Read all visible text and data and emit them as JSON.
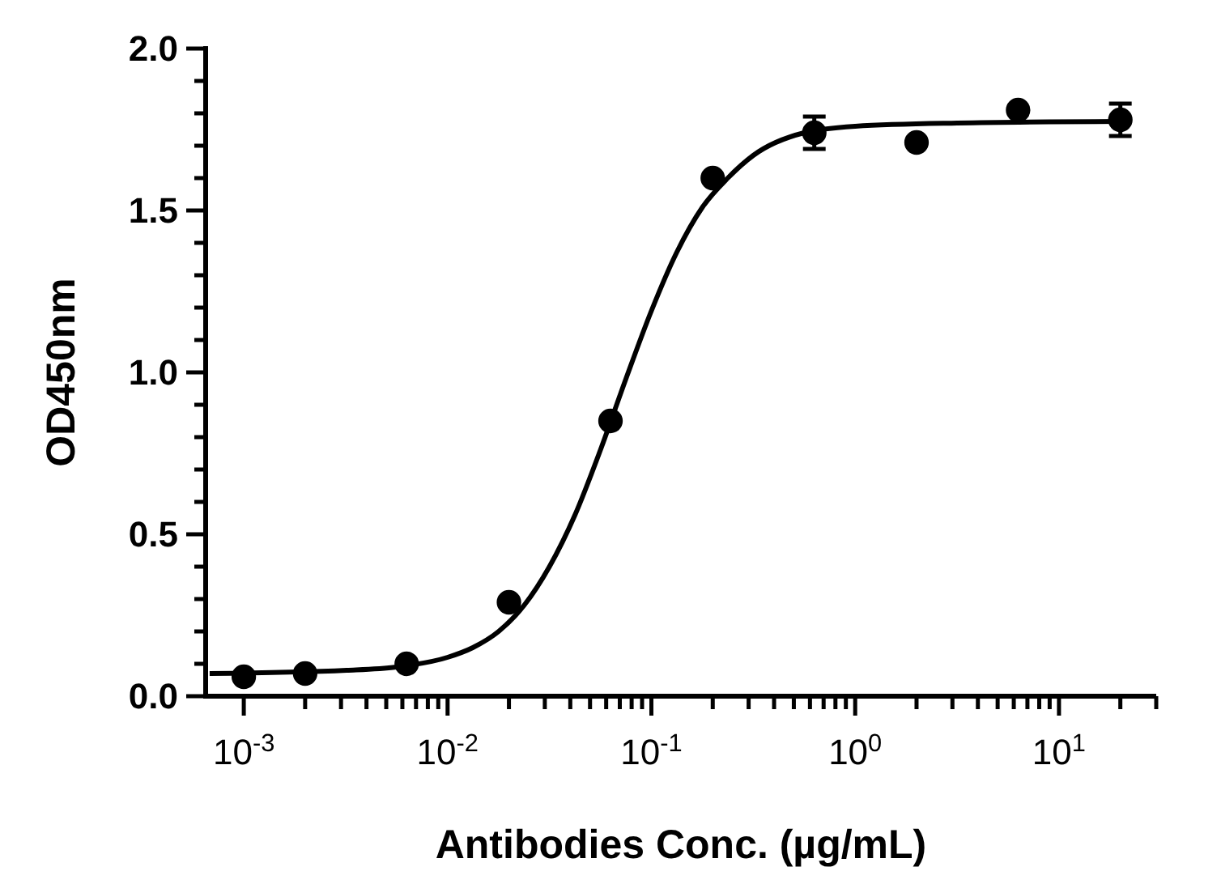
{
  "chart_data": {
    "type": "scatter",
    "xlabel": "Antibodies Conc. (µg/mL)",
    "ylabel": "OD450nm",
    "log": "x",
    "grid": false,
    "marker": "circle",
    "xlim": [
      0.00065,
      30
    ],
    "ylim": [
      0,
      2
    ],
    "xticks": [
      {
        "value": 0.001,
        "label": "10$^{-3}$"
      },
      {
        "value": 0.002,
        "label": null
      },
      {
        "value": 0.003,
        "label": null
      },
      {
        "value": 0.004,
        "label": null
      },
      {
        "value": 0.005,
        "label": null
      },
      {
        "value": 0.006,
        "label": null
      },
      {
        "value": 0.007,
        "label": null
      },
      {
        "value": 0.008,
        "label": null
      },
      {
        "value": 0.009,
        "label": null
      },
      {
        "value": 0.01,
        "label": "10$^{-2}$"
      },
      {
        "value": 0.02,
        "label": null
      },
      {
        "value": 0.03,
        "label": null
      },
      {
        "value": 0.04,
        "label": null
      },
      {
        "value": 0.05,
        "label": null
      },
      {
        "value": 0.06,
        "label": null
      },
      {
        "value": 0.07,
        "label": null
      },
      {
        "value": 0.08,
        "label": null
      },
      {
        "value": 0.09,
        "label": null
      },
      {
        "value": 0.1,
        "label": "10$^{-1}$"
      },
      {
        "value": 0.2,
        "label": null
      },
      {
        "value": 0.3,
        "label": null
      },
      {
        "value": 0.4,
        "label": null
      },
      {
        "value": 0.5,
        "label": null
      },
      {
        "value": 0.6,
        "label": null
      },
      {
        "value": 0.7,
        "label": null
      },
      {
        "value": 0.8,
        "label": null
      },
      {
        "value": 0.9,
        "label": null
      },
      {
        "value": 1,
        "label": "10$^{0}$"
      },
      {
        "value": 2,
        "label": null
      },
      {
        "value": 3,
        "label": null
      },
      {
        "value": 4,
        "label": null
      },
      {
        "value": 5,
        "label": null
      },
      {
        "value": 6,
        "label": null
      },
      {
        "value": 7,
        "label": null
      },
      {
        "value": 8,
        "label": null
      },
      {
        "value": 9,
        "label": null
      },
      {
        "value": 10,
        "label": "10$^{1}$"
      },
      {
        "value": 20,
        "label": null
      },
      {
        "value": 30,
        "label": null
      }
    ],
    "yticks": [
      {
        "value": 0,
        "label": "0.0"
      },
      {
        "value": 0.1,
        "label": null
      },
      {
        "value": 0.2,
        "label": null
      },
      {
        "value": 0.3,
        "label": null
      },
      {
        "value": 0.4,
        "label": null
      },
      {
        "value": 0.5,
        "label": "0.5"
      },
      {
        "value": 0.6,
        "label": null
      },
      {
        "value": 0.7,
        "label": null
      },
      {
        "value": 0.8,
        "label": null
      },
      {
        "value": 0.9,
        "label": null
      },
      {
        "value": 1,
        "label": "1.0"
      },
      {
        "value": 1.1,
        "label": null
      },
      {
        "value": 1.2,
        "label": null
      },
      {
        "value": 1.3,
        "label": null
      },
      {
        "value": 1.4,
        "label": null
      },
      {
        "value": 1.5,
        "label": "1.5"
      },
      {
        "value": 1.6,
        "label": null
      },
      {
        "value": 1.7,
        "label": null
      },
      {
        "value": 1.8,
        "label": null
      },
      {
        "value": 1.9,
        "label": null
      },
      {
        "value": 2,
        "label": "2.0"
      }
    ],
    "series": [
      {
        "color": "#000000",
        "x": [
          0.001,
          0.002,
          0.0063,
          0.02,
          0.063,
          0.2,
          0.63,
          2,
          6.3,
          20
        ],
        "values": [
          0.06,
          0.07,
          0.1,
          0.29,
          0.85,
          1.6,
          1.74,
          1.71,
          1.81,
          1.78
        ],
        "errors": [
          null,
          null,
          null,
          null,
          null,
          null,
          0.05,
          null,
          null,
          0.05
        ]
      },
      {
        "type": "line",
        "color": "#000000",
        "marker": "none",
        "line_style": "solid",
        "x": [
          0.00068,
          0.0032,
          0.0056,
          0.01,
          0.0133,
          0.0178,
          0.0237,
          0.0316,
          0.0422,
          0.0562,
          0.075,
          0.1,
          0.133,
          0.178,
          0.237,
          0.316,
          0.562,
          1,
          3.16,
          20
        ],
        "values": [
          0.07,
          0.08,
          0.09,
          0.12,
          0.15,
          0.2,
          0.28,
          0.4,
          0.56,
          0.76,
          0.98,
          1.19,
          1.37,
          1.51,
          1.6,
          1.67,
          1.74,
          1.76,
          1.77,
          1.775
        ]
      }
    ]
  }
}
